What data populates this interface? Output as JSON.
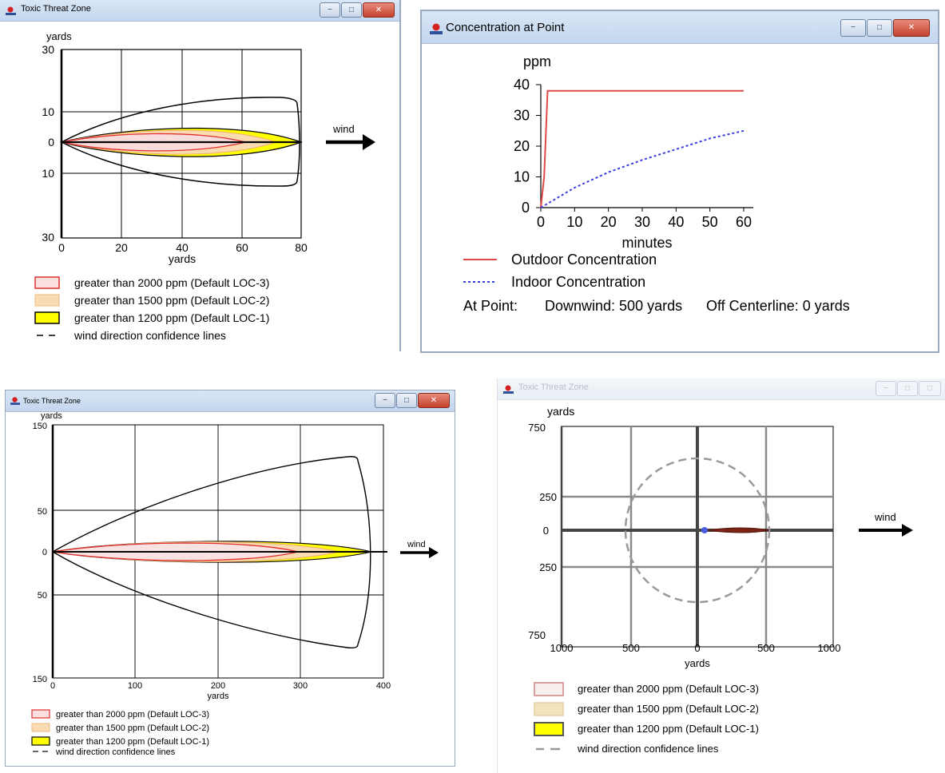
{
  "window1": {
    "title": "Toxic Threat Zone",
    "y_axis_unit": "yards",
    "x_axis_label": "yards",
    "y_ticks": [
      "30",
      "10",
      "0",
      "10",
      "30"
    ],
    "x_ticks": [
      "0",
      "20",
      "40",
      "60",
      "80"
    ],
    "wind_label": "wind",
    "legend": [
      "greater than 2000 ppm (Default LOC-3)",
      "greater than 1500 ppm (Default LOC-2)",
      "greater than 1200 ppm (Default LOC-1)",
      "wind direction confidence lines"
    ]
  },
  "window2": {
    "title": "Concentration at Point",
    "y_unit": "ppm",
    "y_ticks": [
      "40",
      "30",
      "20",
      "10",
      "0"
    ],
    "x_ticks": [
      "0",
      "10",
      "20",
      "30",
      "40",
      "50",
      "60"
    ],
    "x_label": "minutes",
    "legend": [
      "Outdoor Concentration",
      "Indoor Concentration"
    ],
    "point_prefix": "At Point:",
    "downwind": "Downwind: 500 yards",
    "off_centerline": "Off Centerline: 0 yards"
  },
  "window3": {
    "title": "Toxic Threat Zone",
    "y_axis_unit": "yards",
    "x_axis_label": "yards",
    "y_ticks": [
      "150",
      "50",
      "0",
      "50",
      "150"
    ],
    "x_ticks": [
      "0",
      "100",
      "200",
      "300",
      "400"
    ],
    "wind_label": "wind",
    "legend": [
      "greater than 2000 ppm (Default LOC-3)",
      "greater than 1500 ppm (Default LOC-2)",
      "greater than 1200 ppm (Default LOC-1)",
      "wind direction confidence lines"
    ]
  },
  "window4": {
    "title": "Toxic Threat Zone",
    "y_axis_unit": "yards",
    "x_axis_label": "yards",
    "y_ticks": [
      "750",
      "250",
      "0",
      "250",
      "750"
    ],
    "x_ticks": [
      "1000",
      "500",
      "0",
      "500",
      "1000"
    ],
    "wind_label": "wind",
    "legend": [
      "greater than 2000 ppm (Default LOC-3)",
      "greater than 1500 ppm (Default LOC-2)",
      "greater than 1200 ppm (Default LOC-1)",
      "wind direction confidence lines"
    ]
  },
  "chart_data": [
    {
      "type": "area",
      "x": [
        0,
        20,
        40,
        60,
        80
      ],
      "y": [
        30,
        10,
        0,
        10,
        30
      ],
      "xlabel": "yards",
      "ylabel": "yards",
      "xlim": [
        0,
        80
      ],
      "ylim": [
        -30,
        30
      ],
      "series": [
        {
          "name": "greater than 2000 ppm (Default LOC-3)",
          "max_downwind": 62,
          "max_halfwidth": 4
        },
        {
          "name": "greater than 1500 ppm (Default LOC-2)",
          "max_downwind": 70,
          "max_halfwidth": 5
        },
        {
          "name": "greater than 1200 ppm (Default LOC-1)",
          "max_downwind": 80,
          "max_halfwidth": 6
        },
        {
          "name": "wind direction confidence lines",
          "max_downwind": 79,
          "max_halfwidth": 15
        }
      ]
    },
    {
      "type": "line",
      "xlabel": "minutes",
      "ylabel": "ppm",
      "xlim": [
        0,
        60
      ],
      "ylim": [
        0,
        40
      ],
      "series": [
        {
          "name": "Outdoor Concentration",
          "x": [
            0,
            1,
            2,
            60
          ],
          "y": [
            0,
            10,
            38,
            38
          ]
        },
        {
          "name": "Indoor Concentration",
          "x": [
            0,
            10,
            20,
            30,
            40,
            50,
            60
          ],
          "y": [
            0,
            6.5,
            11.5,
            15.5,
            19,
            22.5,
            25
          ]
        }
      ]
    },
    {
      "type": "area",
      "x": [
        0,
        100,
        200,
        300,
        400
      ],
      "y": [
        150,
        50,
        0,
        50,
        150
      ],
      "xlabel": "yards",
      "ylabel": "yards",
      "xlim": [
        0,
        400
      ],
      "ylim": [
        -150,
        150
      ],
      "series": [
        {
          "name": "greater than 2000 ppm (Default LOC-3)",
          "max_downwind": 296,
          "max_halfwidth": 12
        },
        {
          "name": "greater than 1500 ppm (Default LOC-2)",
          "max_downwind": 345,
          "max_halfwidth": 14
        },
        {
          "name": "greater than 1200 ppm (Default LOC-1)",
          "max_downwind": 385,
          "max_halfwidth": 18
        },
        {
          "name": "wind direction confidence lines",
          "max_downwind": 385,
          "max_halfwidth": 108
        }
      ]
    },
    {
      "type": "area",
      "x": [
        -1000,
        -500,
        0,
        500,
        1000
      ],
      "y": [
        750,
        250,
        0,
        250,
        750
      ],
      "xlabel": "yards",
      "ylabel": "yards",
      "xlim": [
        -1000,
        1000
      ],
      "ylim": [
        -750,
        750
      ],
      "series": [
        {
          "name": "greater than 2000 ppm (Default LOC-3)",
          "max_downwind": 500,
          "max_halfwidth": 15
        },
        {
          "name": "greater than 1500 ppm (Default LOC-2)",
          "max_downwind": 500,
          "max_halfwidth": 15
        },
        {
          "name": "greater than 1200 ppm (Default LOC-1)",
          "max_downwind": 500,
          "max_halfwidth": 15
        },
        {
          "name": "wind direction confidence lines",
          "max_downwind": 530,
          "max_halfwidth": 530
        }
      ]
    }
  ]
}
